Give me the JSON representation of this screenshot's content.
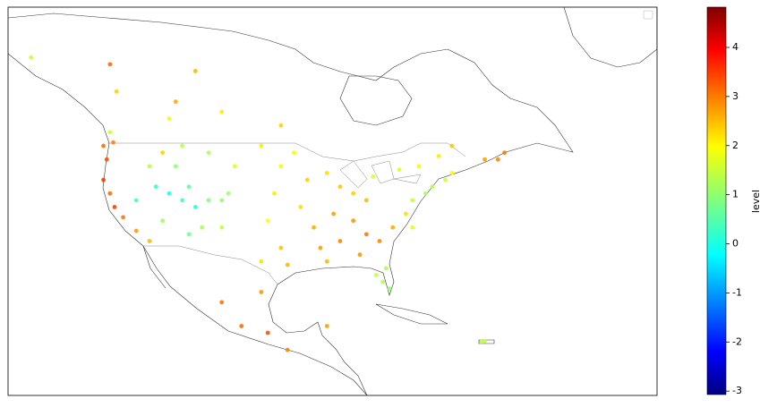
{
  "chart_data": {
    "type": "scatter",
    "colormap": "jet",
    "colorbar_label": "level",
    "clim": [
      -3.07,
      4.82
    ],
    "colorbar_ticks": [
      -3,
      -2,
      -1,
      0,
      1,
      2,
      3,
      4
    ],
    "xlim": [
      -138.5,
      -39.8
    ],
    "ylim": [
      10.3,
      67.4
    ],
    "x": [
      -124,
      -123.5,
      -124,
      -123,
      -122.3,
      -121,
      -119,
      -117,
      -122.5,
      -123,
      -117,
      -115,
      -113,
      -116,
      -114,
      -112,
      -111,
      -110,
      -108,
      -106,
      -105,
      -111,
      -109,
      -106,
      -112,
      -108,
      -104,
      -115,
      -119,
      -100,
      -97,
      -98,
      -99,
      -97,
      -100,
      -96,
      -94,
      -93,
      -95,
      -90,
      -88,
      -86,
      -84,
      -89,
      -86,
      -84,
      -88,
      -91,
      -82,
      -80,
      -78,
      -92,
      -85,
      -90,
      -77,
      -75,
      -74,
      -72,
      -71,
      -77,
      -81,
      -81.5,
      -80.5,
      -82.5,
      -79,
      -76,
      -73,
      -71,
      -66,
      -63,
      -64,
      -83,
      -97,
      -106,
      -114,
      -113,
      -122,
      -123,
      -135,
      -110,
      -103,
      -99,
      -100,
      -106,
      -96,
      -90,
      -66.5,
      -66
    ],
    "y": [
      47,
      45,
      42,
      40,
      38,
      36.5,
      34.5,
      33,
      47.5,
      49,
      44,
      46,
      44,
      41,
      40,
      39,
      41,
      38,
      39,
      39,
      40,
      34,
      35,
      35,
      47,
      46,
      44,
      36,
      39,
      47,
      44,
      40,
      36,
      32,
      30,
      29.5,
      38,
      42,
      46,
      43,
      41,
      40,
      39,
      37,
      36,
      34,
      33,
      32,
      33,
      35,
      37,
      35,
      31,
      30,
      39,
      40,
      41,
      42,
      43,
      35,
      29,
      27,
      26,
      28,
      43.5,
      44,
      45.5,
      47,
      45,
      46,
      45,
      42.5,
      50,
      52,
      51,
      53.5,
      55,
      59,
      60,
      58,
      20.5,
      19.5,
      25.5,
      24,
      17,
      20.5,
      18.2,
      18.3
    ],
    "values": [
      3.0,
      3.2,
      3.4,
      3.0,
      3.3,
      2.9,
      2.6,
      2.4,
      2.8,
      1.5,
      1.3,
      2.2,
      1.0,
      0.3,
      0.1,
      0.4,
      0.6,
      0.2,
      0.9,
      1.0,
      1.1,
      0.8,
      1.2,
      1.4,
      1.3,
      1.2,
      1.6,
      1.1,
      0.5,
      2.0,
      1.9,
      2.0,
      1.8,
      2.3,
      2.1,
      2.4,
      2.1,
      2.2,
      1.9,
      2.1,
      2.3,
      2.2,
      2.4,
      2.6,
      2.7,
      2.9,
      2.8,
      2.6,
      2.8,
      2.5,
      2.1,
      2.5,
      2.7,
      2.4,
      1.4,
      1.2,
      1.3,
      1.5,
      1.8,
      1.6,
      1.2,
      1.3,
      1.0,
      1.4,
      1.6,
      1.9,
      2.0,
      2.3,
      2.6,
      2.9,
      2.8,
      1.6,
      2.2,
      2.0,
      1.7,
      2.5,
      2.2,
      3.0,
      1.4,
      2.4,
      3.0,
      3.2,
      2.7,
      2.9,
      2.8,
      2.6,
      1.3,
      1.4
    ]
  }
}
